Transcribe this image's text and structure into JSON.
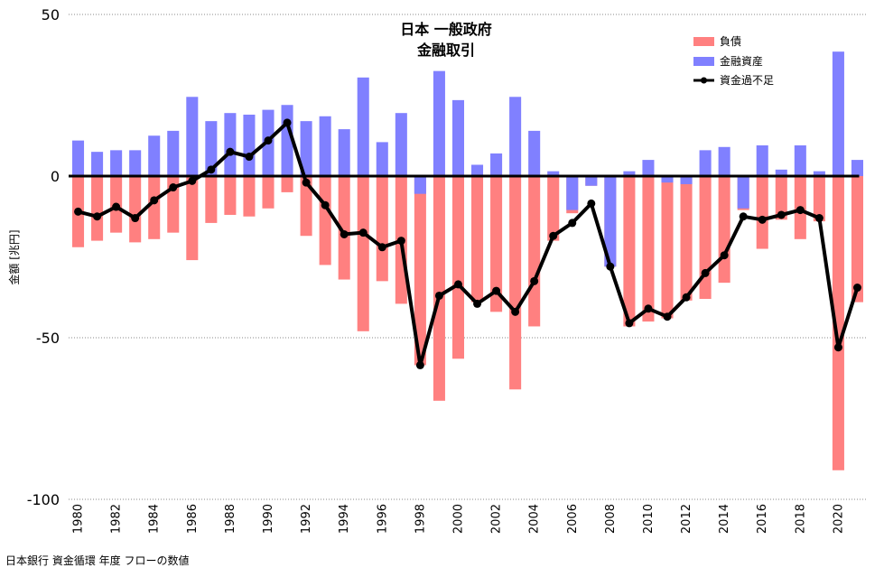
{
  "chart_data": {
    "type": "bar",
    "title": [
      "日本 一般政府",
      "金融取引"
    ],
    "ylabel": "金額 [兆円]",
    "xlabel": "",
    "source": "日本銀行 資金循環 年度 フローの数値",
    "ylim": [
      -100,
      50
    ],
    "yticks": [
      50,
      0,
      -50,
      -100
    ],
    "xtick_labels": [
      "1980",
      "1982",
      "1984",
      "1986",
      "1988",
      "1990",
      "1992",
      "1994",
      "1996",
      "1998",
      "2000",
      "2002",
      "2004",
      "2006",
      "2008",
      "2010",
      "2012",
      "2014",
      "2016",
      "2018",
      "2020"
    ],
    "grid": "horizontal dotted at 50 and -50",
    "legend_position": "top-right",
    "x": [
      1980,
      1981,
      1982,
      1983,
      1984,
      1985,
      1986,
      1987,
      1988,
      1989,
      1990,
      1991,
      1992,
      1993,
      1994,
      1995,
      1996,
      1997,
      1998,
      1999,
      2000,
      2001,
      2002,
      2003,
      2004,
      2005,
      2006,
      2007,
      2008,
      2009,
      2010,
      2011,
      2012,
      2013,
      2014,
      2015,
      2016,
      2017,
      2018,
      2019,
      2020,
      2021
    ],
    "series": [
      {
        "name": "負債",
        "kind": "bar",
        "color": "#ff8080",
        "values": [
          -22,
          -20,
          -17.5,
          -20.5,
          -19.5,
          -17.5,
          -26,
          -14.5,
          -12,
          -12.5,
          -10,
          -5,
          -18.5,
          -27.5,
          -32,
          -48,
          -32.5,
          -39.5,
          -58.5,
          -69.5,
          -56.5,
          -39,
          -42,
          -66,
          -46.5,
          -20,
          -11.5,
          -3,
          -28,
          -46.5,
          -45,
          -44,
          -38.5,
          -38,
          -33,
          -10.5,
          -22.5,
          -13.5,
          -19.5,
          -14,
          -91,
          -39
        ]
      },
      {
        "name": "金融資産",
        "kind": "bar",
        "color": "#8080ff",
        "values": [
          11,
          7.5,
          8,
          8,
          12.5,
          14,
          24.5,
          17,
          19.5,
          19,
          20.5,
          22,
          17,
          18.5,
          14.5,
          30.5,
          10.5,
          19.5,
          -5.5,
          32.5,
          23.5,
          3.5,
          7,
          24.5,
          14,
          1.5,
          -10.5,
          -3,
          -28,
          1.5,
          5,
          -2,
          -2.5,
          8,
          9,
          -10,
          9.5,
          2,
          9.5,
          1.5,
          38.5,
          5
        ]
      },
      {
        "name": "資金過不足",
        "kind": "line",
        "color": "#000000",
        "values": [
          -11,
          -12.5,
          -9.5,
          -13,
          -7.5,
          -3.5,
          -1.5,
          2,
          7.5,
          6,
          11,
          16.5,
          -2,
          -9,
          -18,
          -17.5,
          -22,
          -20,
          -58.5,
          -37,
          -33.5,
          -39.5,
          -35.5,
          -42,
          -32.5,
          -18.5,
          -14.5,
          -8.5,
          -28,
          -45.5,
          -41,
          -43.5,
          -37.5,
          -30,
          -24.5,
          -12.5,
          -13.5,
          -12,
          -10.5,
          -13,
          -53,
          -34.5
        ]
      }
    ]
  }
}
